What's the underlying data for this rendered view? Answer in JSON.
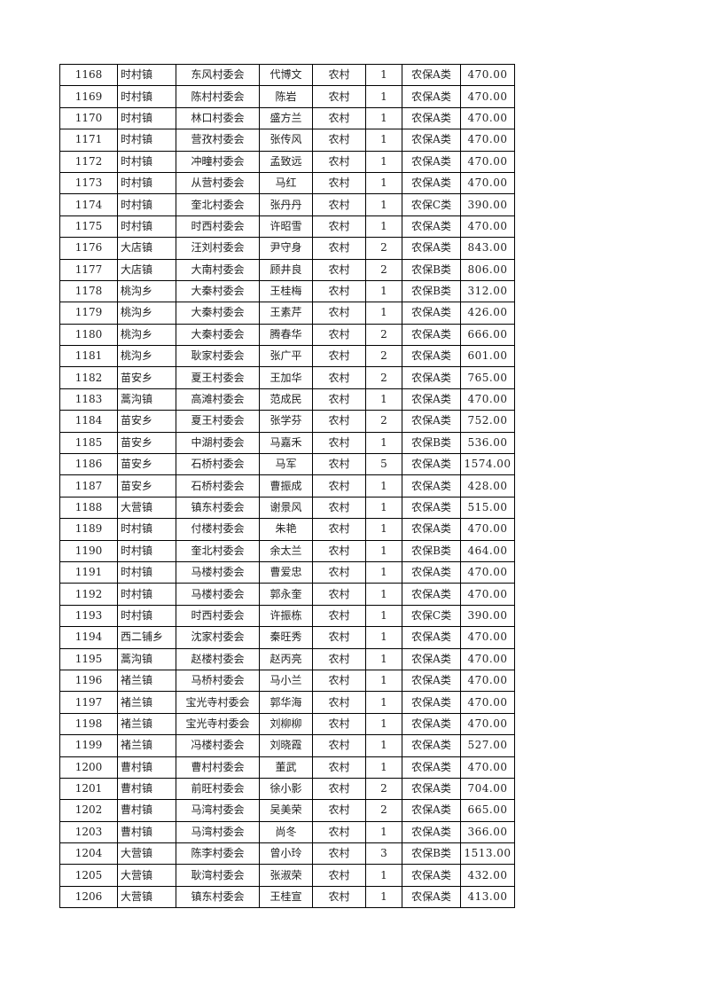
{
  "rows": [
    [
      "1168",
      "时村镇",
      "东风村委会",
      "代博文",
      "农村",
      "1",
      "农保A类",
      "470.00"
    ],
    [
      "1169",
      "时村镇",
      "陈村村委会",
      "陈岩",
      "农村",
      "1",
      "农保A类",
      "470.00"
    ],
    [
      "1170",
      "时村镇",
      "林口村委会",
      "盛方兰",
      "农村",
      "1",
      "农保A类",
      "470.00"
    ],
    [
      "1171",
      "时村镇",
      "营孜村委会",
      "张传风",
      "农村",
      "1",
      "农保A类",
      "470.00"
    ],
    [
      "1172",
      "时村镇",
      "冲疃村委会",
      "孟致远",
      "农村",
      "1",
      "农保A类",
      "470.00"
    ],
    [
      "1173",
      "时村镇",
      "从营村委会",
      "马红",
      "农村",
      "1",
      "农保A类",
      "470.00"
    ],
    [
      "1174",
      "时村镇",
      "奎北村委会",
      "张丹丹",
      "农村",
      "1",
      "农保C类",
      "390.00"
    ],
    [
      "1175",
      "时村镇",
      "时西村委会",
      "许昭雪",
      "农村",
      "1",
      "农保A类",
      "470.00"
    ],
    [
      "1176",
      "大店镇",
      "汪刘村委会",
      "尹守身",
      "农村",
      "2",
      "农保A类",
      "843.00"
    ],
    [
      "1177",
      "大店镇",
      "大南村委会",
      "顾井良",
      "农村",
      "2",
      "农保B类",
      "806.00"
    ],
    [
      "1178",
      "桃沟乡",
      "大秦村委会",
      "王桂梅",
      "农村",
      "1",
      "农保B类",
      "312.00"
    ],
    [
      "1179",
      "桃沟乡",
      "大秦村委会",
      "王素芹",
      "农村",
      "1",
      "农保A类",
      "426.00"
    ],
    [
      "1180",
      "桃沟乡",
      "大秦村委会",
      "腾春华",
      "农村",
      "2",
      "农保A类",
      "666.00"
    ],
    [
      "1181",
      "桃沟乡",
      "耿家村委会",
      "张广平",
      "农村",
      "2",
      "农保A类",
      "601.00"
    ],
    [
      "1182",
      "苗安乡",
      "夏王村委会",
      "王加华",
      "农村",
      "2",
      "农保A类",
      "765.00"
    ],
    [
      "1183",
      "蒿沟镇",
      "高滩村委会",
      "范成民",
      "农村",
      "1",
      "农保A类",
      "470.00"
    ],
    [
      "1184",
      "苗安乡",
      "夏王村委会",
      "张学芬",
      "农村",
      "2",
      "农保A类",
      "752.00"
    ],
    [
      "1185",
      "苗安乡",
      "中湖村委会",
      "马嘉禾",
      "农村",
      "1",
      "农保B类",
      "536.00"
    ],
    [
      "1186",
      "苗安乡",
      "石桥村委会",
      "马军",
      "农村",
      "5",
      "农保A类",
      "1574.00"
    ],
    [
      "1187",
      "苗安乡",
      "石桥村委会",
      "曹振成",
      "农村",
      "1",
      "农保A类",
      "428.00"
    ],
    [
      "1188",
      "大营镇",
      "镇东村委会",
      "谢景风",
      "农村",
      "1",
      "农保A类",
      "515.00"
    ],
    [
      "1189",
      "时村镇",
      "付楼村委会",
      "朱艳",
      "农村",
      "1",
      "农保A类",
      "470.00"
    ],
    [
      "1190",
      "时村镇",
      "奎北村委会",
      "余太兰",
      "农村",
      "1",
      "农保B类",
      "464.00"
    ],
    [
      "1191",
      "时村镇",
      "马楼村委会",
      "曹爱忠",
      "农村",
      "1",
      "农保A类",
      "470.00"
    ],
    [
      "1192",
      "时村镇",
      "马楼村委会",
      "郭永奎",
      "农村",
      "1",
      "农保A类",
      "470.00"
    ],
    [
      "1193",
      "时村镇",
      "时西村委会",
      "许振栋",
      "农村",
      "1",
      "农保C类",
      "390.00"
    ],
    [
      "1194",
      "西二铺乡",
      "沈家村委会",
      "秦旺秀",
      "农村",
      "1",
      "农保A类",
      "470.00"
    ],
    [
      "1195",
      "蒿沟镇",
      "赵楼村委会",
      "赵丙亮",
      "农村",
      "1",
      "农保A类",
      "470.00"
    ],
    [
      "1196",
      "褚兰镇",
      "马桥村委会",
      "马小兰",
      "农村",
      "1",
      "农保A类",
      "470.00"
    ],
    [
      "1197",
      "褚兰镇",
      "宝光寺村委会",
      "郭华海",
      "农村",
      "1",
      "农保A类",
      "470.00"
    ],
    [
      "1198",
      "褚兰镇",
      "宝光寺村委会",
      "刘柳柳",
      "农村",
      "1",
      "农保A类",
      "470.00"
    ],
    [
      "1199",
      "褚兰镇",
      "冯楼村委会",
      "刘晓霞",
      "农村",
      "1",
      "农保A类",
      "527.00"
    ],
    [
      "1200",
      "曹村镇",
      "曹村村委会",
      "董武",
      "农村",
      "1",
      "农保A类",
      "470.00"
    ],
    [
      "1201",
      "曹村镇",
      "前旺村委会",
      "徐小影",
      "农村",
      "2",
      "农保A类",
      "704.00"
    ],
    [
      "1202",
      "曹村镇",
      "马湾村委会",
      "吴美荣",
      "农村",
      "2",
      "农保A类",
      "665.00"
    ],
    [
      "1203",
      "曹村镇",
      "马湾村委会",
      "尚冬",
      "农村",
      "1",
      "农保A类",
      "366.00"
    ],
    [
      "1204",
      "大营镇",
      "陈李村委会",
      "曾小玲",
      "农村",
      "3",
      "农保B类",
      "1513.00"
    ],
    [
      "1205",
      "大营镇",
      "耿湾村委会",
      "张淑荣",
      "农村",
      "1",
      "农保A类",
      "432.00"
    ],
    [
      "1206",
      "大营镇",
      "镇东村委会",
      "王桂宣",
      "农村",
      "1",
      "农保A类",
      "413.00"
    ]
  ]
}
